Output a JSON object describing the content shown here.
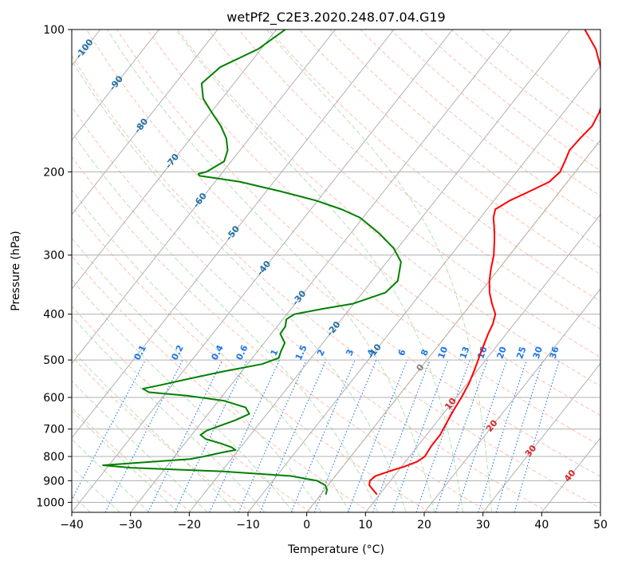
{
  "chart_data": {
    "type": "line",
    "title": "wetPf2_C2E3.2020.248.07.04.G19",
    "xlabel": "Temperature (°C)",
    "ylabel": "Pressure (hPa)",
    "xlim": [
      -40,
      50
    ],
    "ylim": [
      1050,
      100
    ],
    "x_scale": "linear",
    "y_scale": "log",
    "x_ticks": [
      -40,
      -30,
      -20,
      -10,
      0,
      10,
      20,
      30,
      40,
      50
    ],
    "x_tick_labels": [
      "−40",
      "−30",
      "−20",
      "−10",
      "0",
      "10",
      "20",
      "30",
      "40",
      "50"
    ],
    "y_ticks": [
      1000,
      900,
      800,
      700,
      600,
      500,
      400,
      300,
      200,
      100
    ],
    "y_tick_labels": [
      "1000",
      "900",
      "800",
      "700",
      "600",
      "500",
      "400",
      "300",
      "200",
      "100"
    ],
    "grid": true,
    "series": [
      {
        "color": "#ff0000",
        "points": [
          [
            960,
            9.4
          ],
          [
            920,
            7.0
          ],
          [
            900,
            6.5
          ],
          [
            880,
            6.8
          ],
          [
            860,
            8.5
          ],
          [
            840,
            10.5
          ],
          [
            820,
            12.0
          ],
          [
            800,
            12.6
          ],
          [
            760,
            12.3
          ],
          [
            720,
            12.3
          ],
          [
            680,
            11.8
          ],
          [
            640,
            11.3
          ],
          [
            600,
            10.9
          ],
          [
            560,
            10.3
          ],
          [
            520,
            9.3
          ],
          [
            480,
            8.1
          ],
          [
            440,
            6.9
          ],
          [
            420,
            6.4
          ],
          [
            400,
            5.5
          ],
          [
            380,
            3.5
          ],
          [
            360,
            1.6
          ],
          [
            340,
            0.0
          ],
          [
            320,
            -1.4
          ],
          [
            300,
            -2.7
          ],
          [
            290,
            -3.6
          ],
          [
            280,
            -4.5
          ],
          [
            270,
            -5.5
          ],
          [
            260,
            -6.6
          ],
          [
            250,
            -7.8
          ],
          [
            240,
            -8.6
          ],
          [
            230,
            -7.3
          ],
          [
            220,
            -5.2
          ],
          [
            210,
            -3.1
          ],
          [
            200,
            -2.6
          ],
          [
            190,
            -3.2
          ],
          [
            180,
            -3.9
          ],
          [
            170,
            -3.7
          ],
          [
            160,
            -3.3
          ],
          [
            150,
            -3.9
          ],
          [
            140,
            -5.0
          ],
          [
            130,
            -7.4
          ],
          [
            120,
            -9.8
          ],
          [
            110,
            -13.0
          ],
          [
            100,
            -17.5
          ]
        ]
      },
      {
        "color": "#008000",
        "points": [
          [
            960,
            0.8
          ],
          [
            940,
            0.4
          ],
          [
            920,
            -0.5
          ],
          [
            900,
            -2.5
          ],
          [
            880,
            -7.5
          ],
          [
            860,
            -20.0
          ],
          [
            845,
            -36.0
          ],
          [
            835,
            -41.0
          ],
          [
            810,
            -27.0
          ],
          [
            800,
            -25.0
          ],
          [
            785,
            -22.5
          ],
          [
            775,
            -20.5
          ],
          [
            765,
            -21.5
          ],
          [
            750,
            -24.0
          ],
          [
            735,
            -27.0
          ],
          [
            720,
            -28.5
          ],
          [
            705,
            -28.0
          ],
          [
            690,
            -26.5
          ],
          [
            670,
            -24.5
          ],
          [
            650,
            -23.0
          ],
          [
            630,
            -24.5
          ],
          [
            610,
            -29.0
          ],
          [
            595,
            -36.0
          ],
          [
            585,
            -43.0
          ],
          [
            575,
            -44.5
          ],
          [
            565,
            -42.0
          ],
          [
            550,
            -38.5
          ],
          [
            530,
            -33.5
          ],
          [
            510,
            -27.5
          ],
          [
            495,
            -25.5
          ],
          [
            480,
            -26.0
          ],
          [
            460,
            -26.5
          ],
          [
            440,
            -28.5
          ],
          [
            425,
            -28.6
          ],
          [
            410,
            -29.4
          ],
          [
            400,
            -28.7
          ],
          [
            390,
            -24.7
          ],
          [
            380,
            -20.1
          ],
          [
            360,
            -16.1
          ],
          [
            340,
            -15.6
          ],
          [
            310,
            -17.6
          ],
          [
            290,
            -20.7
          ],
          [
            270,
            -25.1
          ],
          [
            250,
            -30.5
          ],
          [
            240,
            -34.8
          ],
          [
            230,
            -40.3
          ],
          [
            220,
            -47.5
          ],
          [
            210,
            -55.7
          ],
          [
            206,
            -60.6
          ],
          [
            204,
            -63.4
          ],
          [
            202,
            -63.9
          ],
          [
            200,
            -62.8
          ],
          [
            190,
            -61.2
          ],
          [
            180,
            -62.1
          ],
          [
            170,
            -63.9
          ],
          [
            160,
            -66.5
          ],
          [
            150,
            -69.8
          ],
          [
            140,
            -73.2
          ],
          [
            130,
            -75.5
          ],
          [
            120,
            -74.5
          ],
          [
            110,
            -70.5
          ],
          [
            100,
            -68.5
          ]
        ]
      }
    ],
    "dry_adiabats_K": [
      250,
      260,
      270,
      280,
      290,
      300,
      310,
      320,
      330,
      340,
      350,
      360,
      370,
      380,
      390,
      400,
      410,
      420,
      430,
      440,
      450,
      460
    ],
    "mixing_ratio_lines_gkg": [
      0.1,
      0.2,
      0.4,
      0.6,
      1,
      1.5,
      2,
      3,
      4,
      6,
      8,
      10,
      13,
      16,
      20,
      25,
      30,
      36
    ],
    "mixing_ratio_labels": [
      "0.1",
      "0.2",
      "0.4",
      "0.6",
      "1",
      "1.5",
      "2",
      "3",
      "4",
      "6",
      "8",
      "10",
      "13",
      "16",
      "20",
      "25",
      "30",
      "36"
    ],
    "moist_adiabats_thetaw_C": [
      -40,
      -35,
      -30,
      -25,
      -20,
      -15,
      -10,
      -5,
      0,
      5,
      10,
      15,
      20,
      25,
      30
    ],
    "isotherm_labels_blue": [
      "-100",
      "-90",
      "-80",
      "-70",
      "-60",
      "-50",
      "-40",
      "-30",
      "-20",
      "-10"
    ],
    "isotherm_labels_gray": [
      "0"
    ],
    "isotherm_labels_red": [
      "10",
      "20",
      "30",
      "40"
    ],
    "colors": {
      "temperature": "#ff0000",
      "dewpoint": "#008000",
      "isotherm": "#b0b0b0",
      "isobar": "#b0b0b0",
      "dry_adiabat": "#fa8e6e",
      "moist_adiabat": "#7fc47f",
      "mixing_ratio": "#1f77e4",
      "label_blue": "#1f6fa8",
      "label_red": "#d62728",
      "label_gray": "#7f7f7f",
      "freezing_level": "#d2b48c"
    }
  }
}
